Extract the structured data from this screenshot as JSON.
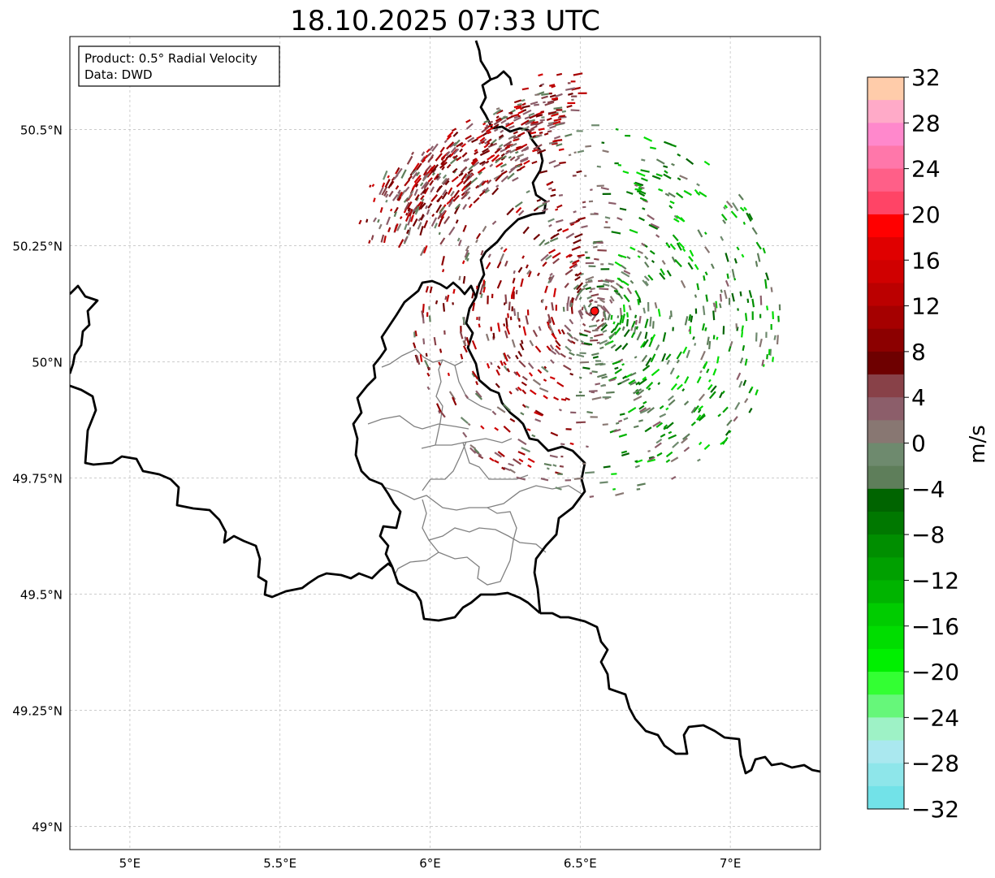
{
  "title": "18.10.2025 07:33 UTC",
  "info_box": {
    "product_line": "Product: 0.5° Radial Velocity",
    "data_line": "Data: DWD"
  },
  "map": {
    "lon_range": [
      4.8,
      7.3
    ],
    "lat_range": [
      48.95,
      50.7
    ],
    "lon_ticks": [
      {
        "value": 5.0,
        "label": "5°E"
      },
      {
        "value": 5.5,
        "label": "5.5°E"
      },
      {
        "value": 6.0,
        "label": "6°E"
      },
      {
        "value": 6.5,
        "label": "6.5°E"
      },
      {
        "value": 7.0,
        "label": "7°E"
      }
    ],
    "lat_ticks": [
      {
        "value": 50.5,
        "label": "50.5°N"
      },
      {
        "value": 50.25,
        "label": "50.25°N"
      },
      {
        "value": 50.0,
        "label": "50°N"
      },
      {
        "value": 49.75,
        "label": "49.75°N"
      },
      {
        "value": 49.5,
        "label": "49.5°N"
      },
      {
        "value": 49.25,
        "label": "49.25°N"
      },
      {
        "value": 49.0,
        "label": "49°N"
      }
    ],
    "gridlines": true,
    "radar_site": {
      "lon": 6.548,
      "lat": 50.109,
      "color": "#ff1010"
    }
  },
  "colorbar": {
    "label": "m/s",
    "min": -32,
    "max": 32,
    "tick_labels": [
      {
        "value": 32,
        "label": "32"
      },
      {
        "value": 28,
        "label": "28"
      },
      {
        "value": 24,
        "label": "24"
      },
      {
        "value": 20,
        "label": "20"
      },
      {
        "value": 16,
        "label": "16"
      },
      {
        "value": 12,
        "label": "12"
      },
      {
        "value": 8,
        "label": "8"
      },
      {
        "value": 4,
        "label": "4"
      },
      {
        "value": 0,
        "label": "0"
      },
      {
        "value": -4,
        "label": "−4"
      },
      {
        "value": -8,
        "label": "−8"
      },
      {
        "value": -12,
        "label": "−12"
      },
      {
        "value": -16,
        "label": "−16"
      },
      {
        "value": -20,
        "label": "−20"
      },
      {
        "value": -24,
        "label": "−24"
      },
      {
        "value": -28,
        "label": "−28"
      },
      {
        "value": -32,
        "label": "−32"
      }
    ],
    "colors_top_to_bottom": [
      "#ffccaa",
      "#ffaac8",
      "#ff88cc",
      "#ff77aa",
      "#ff5f88",
      "#ff4466",
      "#ff0000",
      "#e00000",
      "#d00000",
      "#bb0000",
      "#a50000",
      "#8c0000",
      "#6e0000",
      "#884148",
      "#8c5e6a",
      "#887772",
      "#6e8a6e",
      "#5e7e5a",
      "#006400",
      "#007800",
      "#008e00",
      "#00a000",
      "#00b400",
      "#00cc00",
      "#00dd00",
      "#00f000",
      "#33ff33",
      "#66f77a",
      "#9ef2c6",
      "#aae8ef",
      "#8ee6ea",
      "#72e2e8"
    ]
  }
}
